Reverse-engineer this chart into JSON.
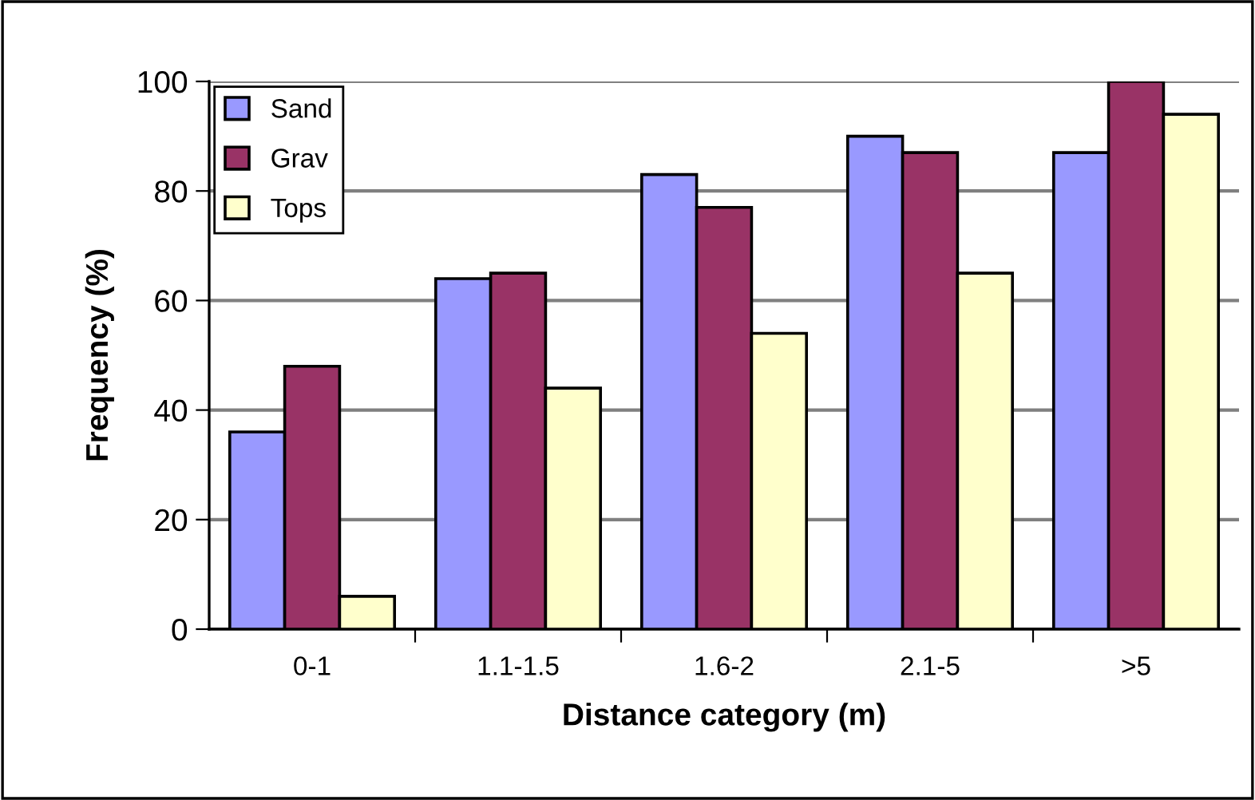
{
  "chart_data": {
    "type": "bar",
    "xlabel": "Distance category (m)",
    "ylabel": "Frequency (%)",
    "categories": [
      "0-1",
      "1.1-1.5",
      "1.6-2",
      "2.1-5",
      ">5"
    ],
    "series": [
      {
        "name": "Sand",
        "color": "#9999ff",
        "values": [
          36,
          64,
          83,
          90,
          87
        ]
      },
      {
        "name": "Grav",
        "color": "#993366",
        "values": [
          48,
          65,
          77,
          87,
          100
        ]
      },
      {
        "name": "Tops",
        "color": "#ffffcc",
        "values": [
          6,
          44,
          54,
          65,
          94
        ]
      }
    ],
    "ylim": [
      0,
      100
    ],
    "yticks": [
      0,
      20,
      40,
      60,
      80,
      100
    ],
    "grid": "y",
    "legend": "top left"
  }
}
